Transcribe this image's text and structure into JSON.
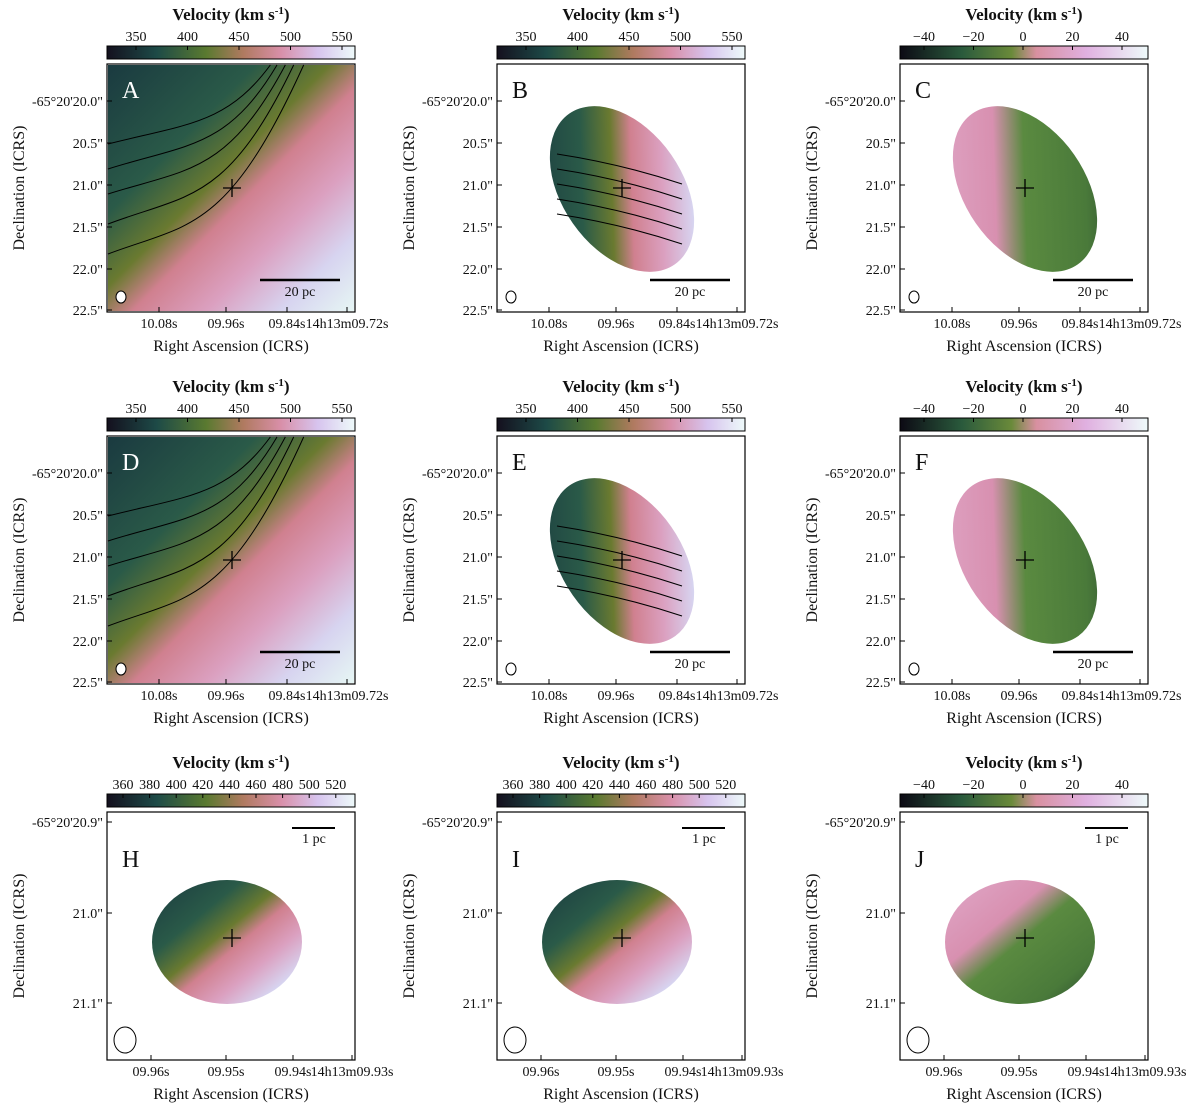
{
  "panels": [
    {
      "label": "A",
      "colorbar_title": [
        "Velocity (km s",
        "-1",
        ")"
      ],
      "colorbar_ticks": [
        "350",
        "400",
        "450",
        "500",
        "550"
      ],
      "yticks": [
        "-65°20'20.0\"",
        "20.5\"",
        "21.0\"",
        "21.5\"",
        "22.0\"",
        "22.5\""
      ],
      "xticks": [
        "10.08s",
        "09.96s",
        "09.84s",
        "14h13m09.72s"
      ],
      "xlabel": "Right Ascension (ICRS)",
      "ylabel": "Declination (ICRS)",
      "scalebar": "20 pc"
    },
    {
      "label": "B",
      "colorbar_title": [
        "Velocity (km s",
        "-1",
        ")"
      ],
      "colorbar_ticks": [
        "350",
        "400",
        "450",
        "500",
        "550"
      ],
      "yticks": [
        "-65°20'20.0\"",
        "20.5\"",
        "21.0\"",
        "21.5\"",
        "22.0\"",
        "22.5\""
      ],
      "xticks": [
        "10.08s",
        "09.96s",
        "09.84s",
        "14h13m09.72s"
      ],
      "xlabel": "Right Ascension (ICRS)",
      "ylabel": "Declination (ICRS)",
      "scalebar": "20 pc"
    },
    {
      "label": "C",
      "colorbar_title": [
        "Velocity (km s",
        "-1",
        ")"
      ],
      "colorbar_ticks": [
        "−40",
        "−20",
        "0",
        "20",
        "40"
      ],
      "yticks": [
        "-65°20'20.0\"",
        "20.5\"",
        "21.0\"",
        "21.5\"",
        "22.0\"",
        "22.5\""
      ],
      "xticks": [
        "10.08s",
        "09.96s",
        "09.84s",
        "14h13m09.72s"
      ],
      "xlabel": "Right Ascension (ICRS)",
      "ylabel": "Declination (ICRS)",
      "scalebar": "20 pc"
    },
    {
      "label": "D",
      "colorbar_title": [
        "Velocity (km s",
        "-1",
        ")"
      ],
      "colorbar_ticks": [
        "350",
        "400",
        "450",
        "500",
        "550"
      ],
      "yticks": [
        "-65°20'20.0\"",
        "20.5\"",
        "21.0\"",
        "21.5\"",
        "22.0\"",
        "22.5\""
      ],
      "xticks": [
        "10.08s",
        "09.96s",
        "09.84s",
        "14h13m09.72s"
      ],
      "xlabel": "Right Ascension (ICRS)",
      "ylabel": "Declination (ICRS)",
      "scalebar": "20 pc"
    },
    {
      "label": "E",
      "colorbar_title": [
        "Velocity (km s",
        "-1",
        ")"
      ],
      "colorbar_ticks": [
        "350",
        "400",
        "450",
        "500",
        "550"
      ],
      "yticks": [
        "-65°20'20.0\"",
        "20.5\"",
        "21.0\"",
        "21.5\"",
        "22.0\"",
        "22.5\""
      ],
      "xticks": [
        "10.08s",
        "09.96s",
        "09.84s",
        "14h13m09.72s"
      ],
      "xlabel": "Right Ascension (ICRS)",
      "ylabel": "Declination (ICRS)",
      "scalebar": "20 pc"
    },
    {
      "label": "F",
      "colorbar_title": [
        "Velocity (km s",
        "-1",
        ")"
      ],
      "colorbar_ticks": [
        "−40",
        "−20",
        "0",
        "20",
        "40"
      ],
      "yticks": [
        "-65°20'20.0\"",
        "20.5\"",
        "21.0\"",
        "21.5\"",
        "22.0\"",
        "22.5\""
      ],
      "xticks": [
        "10.08s",
        "09.96s",
        "09.84s",
        "14h13m09.72s"
      ],
      "xlabel": "Right Ascension (ICRS)",
      "ylabel": "Declination (ICRS)",
      "scalebar": "20 pc"
    },
    {
      "label": "H",
      "colorbar_title": [
        "Velocity (km s",
        "-1",
        ")"
      ],
      "colorbar_ticks": [
        "360",
        "380",
        "400",
        "420",
        "440",
        "460",
        "480",
        "500",
        "520"
      ],
      "yticks": [
        "-65°20'20.9\"",
        "21.0\"",
        "21.1\""
      ],
      "xticks": [
        "09.96s",
        "09.95s",
        "09.94s",
        "14h13m09.93s"
      ],
      "xlabel": "Right Ascension (ICRS)",
      "ylabel": "Declination (ICRS)",
      "scalebar": "1 pc"
    },
    {
      "label": "I",
      "colorbar_title": [
        "Velocity (km s",
        "-1",
        ")"
      ],
      "colorbar_ticks": [
        "360",
        "380",
        "400",
        "420",
        "440",
        "460",
        "480",
        "500",
        "520"
      ],
      "yticks": [
        "-65°20'20.9\"",
        "21.0\"",
        "21.1\""
      ],
      "xticks": [
        "09.96s",
        "09.95s",
        "09.94s",
        "14h13m09.93s"
      ],
      "xlabel": "Right Ascension (ICRS)",
      "ylabel": "Declination (ICRS)",
      "scalebar": "1 pc"
    },
    {
      "label": "J",
      "colorbar_title": [
        "Velocity (km s",
        "-1",
        ")"
      ],
      "colorbar_ticks": [
        "−40",
        "−20",
        "0",
        "20",
        "40"
      ],
      "yticks": [
        "-65°20'20.9\"",
        "21.0\"",
        "21.1\""
      ],
      "xticks": [
        "09.96s",
        "09.95s",
        "09.94s",
        "14h13m09.93s"
      ],
      "xlabel": "Right Ascension (ICRS)",
      "ylabel": "Declination (ICRS)",
      "scalebar": "1 pc"
    }
  ]
}
